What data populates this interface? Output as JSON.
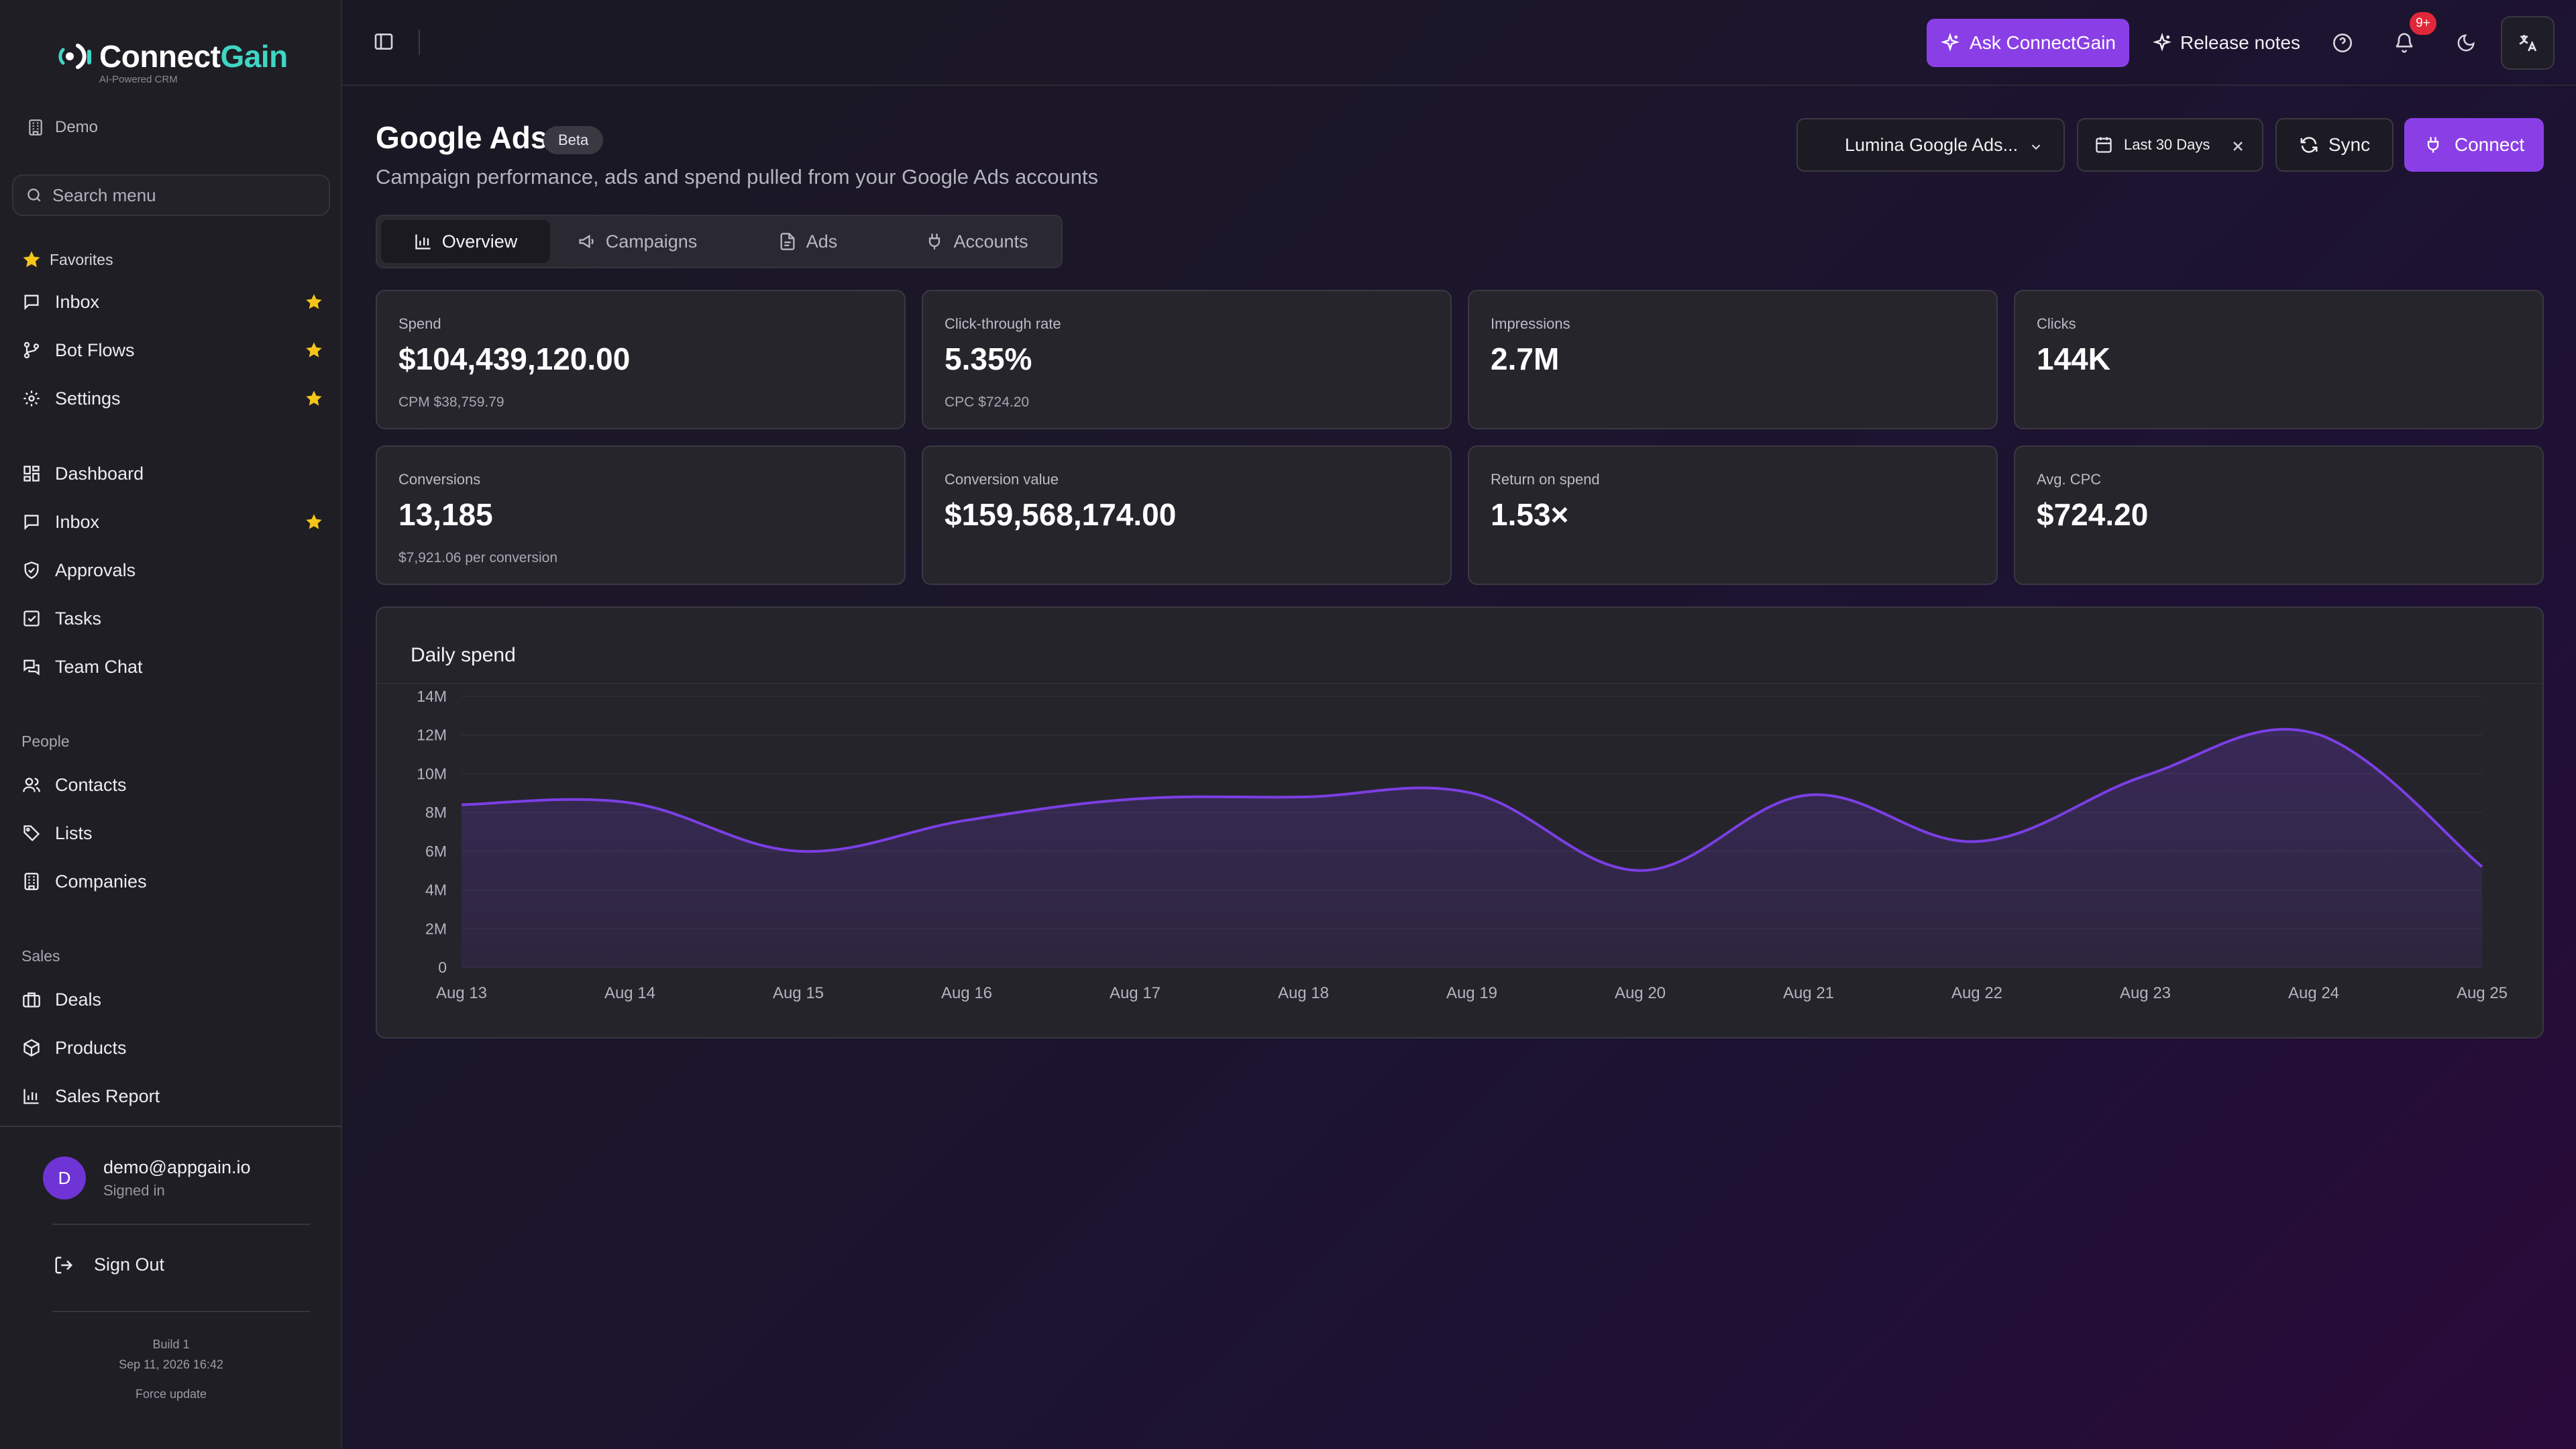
{
  "brand": {
    "name_part1": "Connect",
    "name_part2": "Gain",
    "tagline": "AI-Powered CRM"
  },
  "workspace": {
    "name": "Demo"
  },
  "sidebar": {
    "search_placeholder": "Search menu",
    "favorites_label": "Favorites",
    "favorites": [
      {
        "label": "Inbox",
        "icon": "message-square-icon"
      },
      {
        "label": "Bot Flows",
        "icon": "git-branch-icon"
      },
      {
        "label": "Settings",
        "icon": "gear-icon"
      }
    ],
    "main": [
      {
        "label": "Dashboard",
        "icon": "layout-grid-icon",
        "starred": false
      },
      {
        "label": "Inbox",
        "icon": "message-square-icon",
        "starred": true
      },
      {
        "label": "Approvals",
        "icon": "shield-check-icon",
        "starred": false
      },
      {
        "label": "Tasks",
        "icon": "checkbox-icon",
        "starred": false
      },
      {
        "label": "Team Chat",
        "icon": "chat-bubbles-icon",
        "starred": false
      }
    ],
    "people_label": "People",
    "people": [
      {
        "label": "Contacts",
        "icon": "users-icon"
      },
      {
        "label": "Lists",
        "icon": "tag-icon"
      },
      {
        "label": "Companies",
        "icon": "building-icon"
      }
    ],
    "sales_label": "Sales",
    "sales": [
      {
        "label": "Deals",
        "icon": "briefcase-icon"
      },
      {
        "label": "Products",
        "icon": "package-icon"
      },
      {
        "label": "Sales Report",
        "icon": "bar-chart-icon"
      }
    ],
    "user": {
      "initial": "D",
      "email": "demo@appgain.io",
      "status": "Signed in"
    },
    "sign_out": "Sign Out",
    "build": {
      "label": "Build 1",
      "date": "Sep 11, 2026 16:42",
      "force_update": "Force update"
    }
  },
  "topbar": {
    "ask_label": "Ask ConnectGain",
    "release_label": "Release notes",
    "notification_badge": "9+"
  },
  "header": {
    "title": "Google Ads",
    "badge": "Beta",
    "subtitle": "Campaign performance, ads and spend pulled from your Google Ads accounts",
    "account_select": "Lumina Google Ads...",
    "date_range": "Last 30 Days",
    "sync_label": "Sync",
    "connect_label": "Connect"
  },
  "tabs": [
    {
      "label": "Overview",
      "icon": "bar-chart-icon",
      "active": true
    },
    {
      "label": "Campaigns",
      "icon": "megaphone-icon",
      "active": false
    },
    {
      "label": "Ads",
      "icon": "file-icon",
      "active": false
    },
    {
      "label": "Accounts",
      "icon": "plug-icon",
      "active": false
    }
  ],
  "kpis": [
    {
      "label": "Spend",
      "value": "$104,439,120.00",
      "sub": "CPM $38,759.79"
    },
    {
      "label": "Click-through rate",
      "value": "5.35%",
      "sub": "CPC $724.20"
    },
    {
      "label": "Impressions",
      "value": "2.7M",
      "sub": ""
    },
    {
      "label": "Clicks",
      "value": "144K",
      "sub": ""
    },
    {
      "label": "Conversions",
      "value": "13,185",
      "sub": "$7,921.06 per conversion"
    },
    {
      "label": "Conversion value",
      "value": "$159,568,174.00",
      "sub": ""
    },
    {
      "label": "Return on spend",
      "value": "1.53×",
      "sub": ""
    },
    {
      "label": "Avg. CPC",
      "value": "$724.20",
      "sub": ""
    }
  ],
  "colors": {
    "accent": "#8a3fe6",
    "chart_line": "#7b3fe4",
    "star": "#f5c518"
  },
  "chart_data": {
    "type": "area",
    "title": "Daily spend",
    "x": [
      "Aug 13",
      "Aug 14",
      "Aug 15",
      "Aug 16",
      "Aug 17",
      "Aug 18",
      "Aug 19",
      "Aug 20",
      "Aug 21",
      "Aug 22",
      "Aug 23",
      "Aug 24",
      "Aug 25"
    ],
    "values": [
      8400000,
      8500000,
      6000000,
      7600000,
      8700000,
      8800000,
      9000000,
      5000000,
      8900000,
      6500000,
      9900000,
      12100000,
      5200000
    ],
    "ylim": [
      0,
      14000000
    ],
    "yticks": [
      "0",
      "2M",
      "4M",
      "6M",
      "8M",
      "10M",
      "12M",
      "14M"
    ],
    "grid": true,
    "legend": "none"
  }
}
